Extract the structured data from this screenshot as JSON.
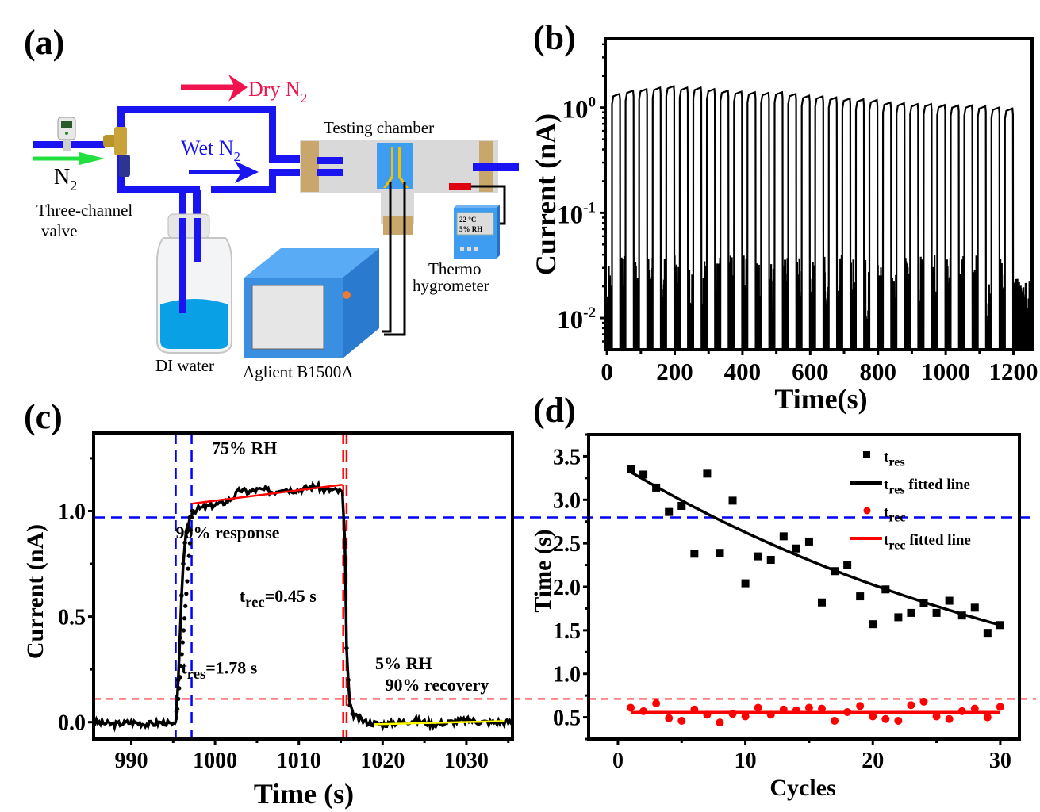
{
  "panels": {
    "a": {
      "label": "(a)",
      "dry_n2": "Dry N",
      "wet_n2": "Wet N",
      "n2": "N",
      "subscript_2": "2",
      "three_channel_valve_line1": "Three-channel",
      "three_channel_valve_line2": "valve",
      "testing_chamber": "Testing chamber",
      "thermo_line1": "Thermo",
      "thermo_line2": "hygrometer",
      "hygrometer_display_line1": "22 °C",
      "hygrometer_display_line2": "5% RH",
      "di_water": "DI water",
      "instrument": "Aglient B1500A",
      "colors": {
        "dry": "#f0134d",
        "wet": "#1010f0",
        "n2_in": "#22e040",
        "pipe": "#1a14f0",
        "water": "#0aa0e6",
        "instrument": "#3a8fe0",
        "chamber": "#d9d9d9",
        "clamp": "#c9a66b",
        "electrode": "#f5c000",
        "sensor": "#e00010"
      }
    },
    "b": {
      "label": "(b)"
    },
    "c": {
      "label": "(c)"
    },
    "d": {
      "label": "(d)"
    }
  },
  "chart_data": [
    {
      "id": "b",
      "type": "line",
      "title": "",
      "xlabel": "Time(s)",
      "ylabel": "Current (nA)",
      "yscale": "log",
      "xlim": [
        -5,
        1255
      ],
      "ylim": [
        0.005,
        4.5
      ],
      "xticks": [
        0,
        200,
        400,
        600,
        800,
        1000,
        1200
      ],
      "xtick_labels": [
        "0",
        "200",
        "400",
        "600",
        "800",
        "1000",
        "1200"
      ],
      "yticks": [
        0.01,
        0.1,
        1
      ],
      "ytick_labels": [
        {
          "base": "10",
          "exp": "-2"
        },
        {
          "base": "10",
          "exp": "-1"
        },
        {
          "base": "10",
          "exp": "0"
        }
      ],
      "cycles": 30,
      "period_s": 40,
      "high_state_start_s": 15,
      "peak_currents_nA": [
        1.35,
        1.45,
        1.5,
        1.55,
        1.6,
        1.55,
        1.55,
        1.5,
        1.45,
        1.42,
        1.4,
        1.38,
        1.4,
        1.35,
        1.3,
        1.28,
        1.25,
        1.22,
        1.2,
        1.18,
        1.12,
        1.1,
        1.08,
        1.08,
        1.06,
        1.05,
        1.05,
        1.03,
        1.0,
        0.98
      ],
      "low_state_range_nA": [
        0.005,
        0.04
      ]
    },
    {
      "id": "c",
      "type": "line",
      "title": "",
      "xlabel": "Time (s)",
      "ylabel": "Current (nA)",
      "xlim": [
        985.5,
        1035.5
      ],
      "ylim": [
        -0.08,
        1.37
      ],
      "xticks": [
        990,
        1000,
        1010,
        1020,
        1030
      ],
      "xtick_labels": [
        "990",
        "1000",
        "1010",
        "1020",
        "1030"
      ],
      "yticks": [
        0.0,
        0.5,
        1.0
      ],
      "ytick_labels": [
        "0.0",
        "0.5",
        "1.0"
      ],
      "series": [
        {
          "name": "current",
          "color": "#000000",
          "x": [
            985.5,
            988,
            990,
            992,
            994,
            995.2,
            995.4,
            995.6,
            995.8,
            996.0,
            996.2,
            996.4,
            996.6,
            996.8,
            997.0,
            997.3,
            998,
            999,
            1000,
            1001,
            1002,
            1003,
            1004,
            1005,
            1006,
            1007,
            1008,
            1009,
            1010,
            1011,
            1012,
            1013,
            1014,
            1015.2,
            1015.5,
            1015.7,
            1015.9,
            1016.1,
            1016.4,
            1017,
            1018,
            1020,
            1022,
            1024,
            1026,
            1028,
            1030,
            1032,
            1035.5
          ],
          "y": [
            0.0,
            -0.01,
            0.0,
            -0.01,
            0.0,
            -0.02,
            0.05,
            0.2,
            0.4,
            0.6,
            0.75,
            0.85,
            0.9,
            0.93,
            0.97,
            1.0,
            1.01,
            1.02,
            1.03,
            1.04,
            1.06,
            1.1,
            1.09,
            1.1,
            1.1,
            1.09,
            1.11,
            1.1,
            1.1,
            1.11,
            1.12,
            1.1,
            1.1,
            1.09,
            0.85,
            0.35,
            0.2,
            0.08,
            0.04,
            0.02,
            0.0,
            -0.01,
            0.0,
            0.01,
            -0.01,
            0.0,
            0.01,
            0.0,
            0.0
          ]
        }
      ],
      "fit_lines": [
        {
          "name": "high-state fit",
          "color": "#ff0000",
          "x": [
            997.2,
            1015.2
          ],
          "y": [
            1.035,
            1.125
          ]
        },
        {
          "name": "low-state fit",
          "color": "#ffff00",
          "x": [
            1019,
            1034.5
          ],
          "y": [
            -0.01,
            0.005
          ]
        }
      ],
      "reference_lines": [
        {
          "orientation": "vertical",
          "x": 995.3,
          "color": "#0000ff"
        },
        {
          "orientation": "vertical",
          "x": 997.2,
          "color": "#0000ff"
        },
        {
          "orientation": "vertical",
          "x": 1015.3,
          "color": "#ff0000"
        },
        {
          "orientation": "vertical",
          "x": 1015.7,
          "color": "#ff0000"
        },
        {
          "orientation": "horizontal",
          "y": 0.97,
          "color": "#0000ff"
        },
        {
          "orientation": "horizontal",
          "y": 0.11,
          "color": "#ff0000"
        }
      ],
      "annotations": [
        {
          "id": "rh_high",
          "text": "75% RH",
          "x": 1003.5,
          "y": 1.27
        },
        {
          "id": "response",
          "text": "90% response",
          "x": 1001.5,
          "y": 0.87
        },
        {
          "id": "trec",
          "main": "t",
          "sub": "rec",
          "rest": "=0.45 s",
          "x": 1007.5,
          "y": 0.57
        },
        {
          "id": "tres",
          "main": "t",
          "sub": "res",
          "rest": "=1.78 s",
          "x": 1000.5,
          "y": 0.23
        },
        {
          "id": "rh_low",
          "text": "5% RH",
          "x": 1022.5,
          "y": 0.25
        },
        {
          "id": "recovery",
          "text": "90% recovery",
          "x": 1026.5,
          "y": 0.15
        }
      ]
    },
    {
      "id": "d",
      "type": "scatter",
      "title": "",
      "xlabel": "Cycles",
      "ylabel": "Time (s)",
      "xlim": [
        -2.3,
        31.5
      ],
      "ylim": [
        0.25,
        3.75
      ],
      "xticks": [
        0,
        10,
        20,
        30
      ],
      "xtick_labels": [
        "0",
        "10",
        "20",
        "30"
      ],
      "yticks": [
        0.5,
        1.0,
        1.5,
        2.0,
        2.5,
        3.0,
        3.5
      ],
      "ytick_labels": [
        "0.5",
        "1.0",
        "1.5",
        "2.0",
        "2.5",
        "3.0",
        "3.5"
      ],
      "x": [
        1,
        2,
        3,
        4,
        5,
        6,
        7,
        8,
        9,
        10,
        11,
        12,
        13,
        14,
        15,
        16,
        17,
        18,
        19,
        20,
        21,
        22,
        23,
        24,
        25,
        26,
        27,
        28,
        29,
        30
      ],
      "series": [
        {
          "name": "t_res",
          "marker": "square",
          "color": "#000000",
          "values": [
            3.35,
            3.29,
            3.14,
            2.86,
            2.93,
            2.38,
            3.3,
            2.39,
            2.99,
            2.04,
            2.35,
            2.31,
            2.58,
            2.44,
            2.52,
            1.82,
            2.18,
            2.25,
            1.89,
            1.57,
            1.97,
            1.65,
            1.7,
            1.81,
            1.7,
            1.84,
            1.67,
            1.76,
            1.47,
            1.56
          ]
        },
        {
          "name": "t_rec",
          "marker": "circle",
          "color": "#ff0000",
          "values": [
            0.61,
            0.57,
            0.66,
            0.49,
            0.46,
            0.59,
            0.53,
            0.44,
            0.54,
            0.51,
            0.61,
            0.53,
            0.59,
            0.58,
            0.61,
            0.6,
            0.46,
            0.56,
            0.63,
            0.51,
            0.48,
            0.46,
            0.64,
            0.68,
            0.51,
            0.48,
            0.57,
            0.6,
            0.5,
            0.62
          ]
        }
      ],
      "fits": [
        {
          "name": "t_res fitted line",
          "type": "exponential_decay",
          "color": "#000000",
          "x_range": [
            1,
            30
          ],
          "y_at_start": 3.32,
          "y_at_end": 1.56
        },
        {
          "name": "t_rec fitted line",
          "type": "constant",
          "color": "#ff0000",
          "x_range": [
            1,
            30
          ],
          "value": 0.555
        }
      ],
      "legend": {
        "position": "top-right",
        "entries": [
          {
            "main": "t",
            "sub": "res",
            "rest": "",
            "kind": "square",
            "color": "#000000"
          },
          {
            "main": "t",
            "sub": "res",
            "rest": " fitted line",
            "kind": "line",
            "color": "#000000"
          },
          {
            "main": "t",
            "sub": "rec",
            "rest": "",
            "kind": "circle",
            "color": "#ff0000"
          },
          {
            "main": "t",
            "sub": "rec",
            "rest": " fitted line",
            "kind": "line",
            "color": "#ff0000"
          }
        ]
      }
    }
  ]
}
